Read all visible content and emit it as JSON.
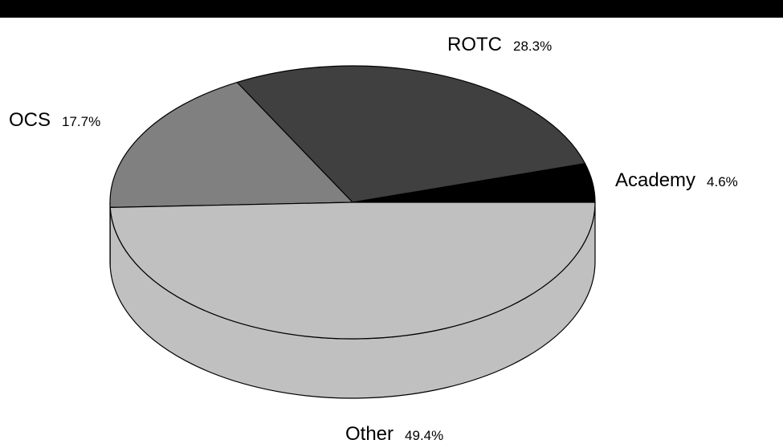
{
  "chart_data": {
    "type": "pie",
    "style": "3d",
    "title": "",
    "slices": [
      {
        "label": "Academy",
        "value": 4.6,
        "display": "4.6%",
        "color": "#000000"
      },
      {
        "label": "ROTC",
        "value": 28.3,
        "display": "28.3%",
        "color": "#404040"
      },
      {
        "label": "OCS",
        "value": 17.7,
        "display": "17.7%",
        "color": "#808080"
      },
      {
        "label": "Other",
        "value": 49.4,
        "display": "49.4%",
        "color": "#c0c0c0"
      }
    ]
  },
  "colors": {
    "top_bar": "#000000",
    "outline": "#000000",
    "background": "#ffffff"
  }
}
